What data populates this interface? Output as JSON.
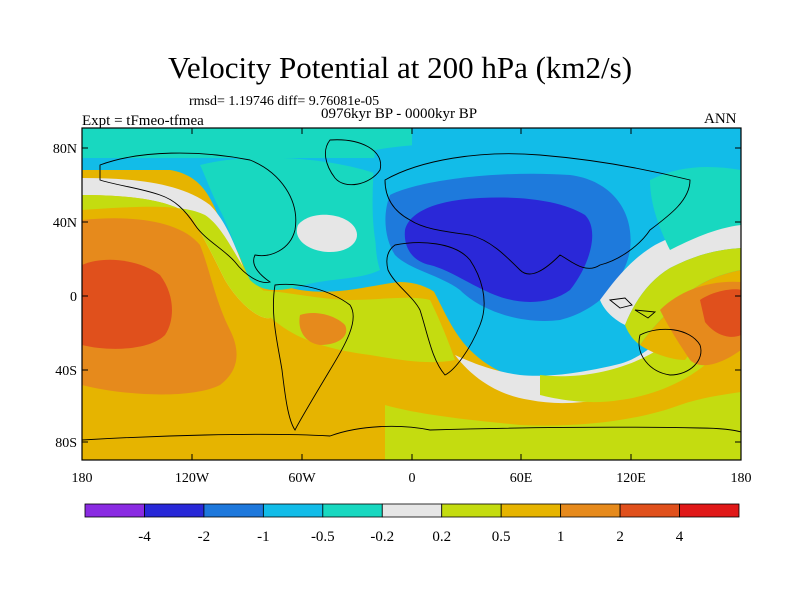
{
  "title": "Velocity Potential at 200 hPa (km2/s)",
  "stats": "rmsd= 1.19746 diff= 9.76081e-05",
  "experiment": "Expt = tFmeo-tfmea",
  "period": "0976kyr BP - 0000kyr BP",
  "season": "ANN",
  "lat_labels": [
    "80N",
    "40N",
    "0",
    "40S",
    "80S"
  ],
  "lon_labels": [
    "180",
    "120W",
    "60W",
    "0",
    "60E",
    "120E",
    "180"
  ],
  "colorbar": {
    "colors": [
      "#8a2be2",
      "#2828d8",
      "#1e78dc",
      "#12bce8",
      "#18d8c0",
      "#e6e6e6",
      "#c4dc10",
      "#e6b400",
      "#e68a1c",
      "#e0501c",
      "#e01818"
    ],
    "labels": [
      "-4",
      "-2",
      "-1",
      "-0.5",
      "-0.2",
      "0.2",
      "0.5",
      "1",
      "2",
      "4"
    ]
  },
  "palette": {
    "background": "#19c8e6",
    "deep_blue": "#2a28d8",
    "mid_blue": "#1e7adc",
    "cyan": "#12bce8",
    "teal": "#18d8c0",
    "white": "#e8e8e8",
    "yellow_green": "#c4dc10",
    "orange_yellow": "#e6b400",
    "orange": "#e68a1c",
    "red_orange": "#e0501c"
  }
}
